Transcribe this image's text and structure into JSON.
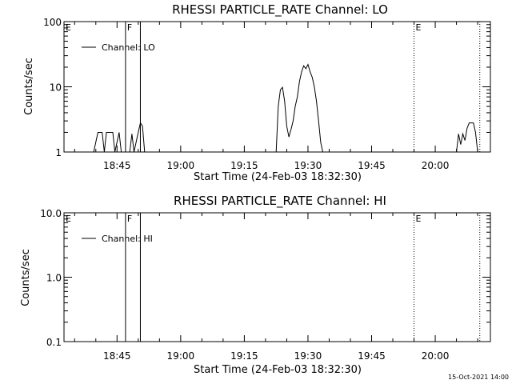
{
  "footer_stamp": "15-Oct-2021 14:00",
  "x_tick_labels": [
    "18:45",
    "19:00",
    "19:15",
    "19:30",
    "19:45",
    "20:00"
  ],
  "x_axis_label": "Start Time (24-Feb-03 18:32:30)",
  "chart_data": [
    {
      "type": "line",
      "title": "RHESSI PARTICLE_RATE Channel: LO",
      "ylabel": "Counts/sec",
      "xlabel": "Start Time (24-Feb-03 18:32:30)",
      "y_scale": "log",
      "ylim": [
        1,
        100
      ],
      "xlim": [
        "18:32:30",
        "20:13:00"
      ],
      "y_tick_labels": [
        "1",
        "10",
        "100"
      ],
      "legend": {
        "label": "Channel: LO",
        "placement": "top-left"
      },
      "markers": [
        {
          "label": "E",
          "time": "18:32:30",
          "style": "dotted"
        },
        {
          "label": "F",
          "time": "18:47:00",
          "style": "solid"
        },
        {
          "label": "",
          "time": "18:50:30",
          "style": "solid"
        },
        {
          "label": "E",
          "time": "19:55:00",
          "style": "dotted"
        },
        {
          "label": "",
          "time": "20:10:30",
          "style": "dotted"
        }
      ],
      "series": [
        {
          "name": "Channel: LO",
          "segments": [
            [
              [
                "18:39:30",
                1
              ],
              [
                "18:40:30",
                2
              ],
              [
                "18:41:30",
                2
              ],
              [
                "18:42:00",
                1
              ],
              [
                "18:42:30",
                2
              ],
              [
                "18:44:00",
                2
              ],
              [
                "18:44:30",
                1
              ],
              [
                "18:45:30",
                2
              ],
              [
                "18:46:00",
                1
              ]
            ],
            [
              [
                "18:48:00",
                1
              ],
              [
                "18:48:30",
                1.9
              ],
              [
                "18:49:00",
                1
              ],
              [
                "18:50:00",
                2
              ],
              [
                "18:50:30",
                2.8
              ],
              [
                "18:51:00",
                2.5
              ],
              [
                "18:51:30",
                1
              ]
            ],
            [
              [
                "19:22:30",
                1
              ],
              [
                "19:23:00",
                5
              ],
              [
                "19:23:30",
                9
              ],
              [
                "19:24:00",
                9.8
              ],
              [
                "19:24:30",
                6
              ],
              [
                "19:25:00",
                2.5
              ],
              [
                "19:25:30",
                1.7
              ],
              [
                "19:26:00",
                2.2
              ],
              [
                "19:26:30",
                3
              ],
              [
                "19:27:00",
                5
              ],
              [
                "19:27:30",
                7
              ],
              [
                "19:28:00",
                12
              ],
              [
                "19:28:30",
                17
              ],
              [
                "19:29:00",
                21
              ],
              [
                "19:29:30",
                19
              ],
              [
                "19:30:00",
                22
              ],
              [
                "19:30:30",
                17
              ],
              [
                "19:31:00",
                14
              ],
              [
                "19:31:30",
                10
              ],
              [
                "19:32:00",
                6
              ],
              [
                "19:32:30",
                3
              ],
              [
                "19:33:00",
                1.4
              ],
              [
                "19:33:30",
                1
              ]
            ],
            [
              [
                "20:05:00",
                1
              ],
              [
                "20:05:30",
                1.9
              ],
              [
                "20:06:00",
                1.3
              ],
              [
                "20:06:30",
                1.9
              ],
              [
                "20:07:00",
                1.5
              ],
              [
                "20:07:30",
                2.3
              ],
              [
                "20:08:00",
                2.8
              ],
              [
                "20:09:00",
                2.8
              ],
              [
                "20:09:30",
                2
              ],
              [
                "20:10:00",
                1
              ]
            ]
          ]
        }
      ]
    },
    {
      "type": "line",
      "title": "RHESSI PARTICLE_RATE Channel: HI",
      "ylabel": "Counts/sec",
      "xlabel": "Start Time (24-Feb-03 18:32:30)",
      "y_scale": "log",
      "ylim": [
        0.1,
        10
      ],
      "xlim": [
        "18:32:30",
        "20:13:00"
      ],
      "y_tick_labels": [
        "0.1",
        "1.0",
        "10.0"
      ],
      "legend": {
        "label": "Channel: HI",
        "placement": "top-left"
      },
      "markers": [
        {
          "label": "E",
          "time": "18:32:30",
          "style": "dotted"
        },
        {
          "label": "F",
          "time": "18:47:00",
          "style": "solid"
        },
        {
          "label": "",
          "time": "18:50:30",
          "style": "solid"
        },
        {
          "label": "E",
          "time": "19:55:00",
          "style": "dotted"
        },
        {
          "label": "",
          "time": "20:10:30",
          "style": "dotted"
        }
      ],
      "series": [
        {
          "name": "Channel: HI",
          "segments": []
        }
      ]
    }
  ]
}
